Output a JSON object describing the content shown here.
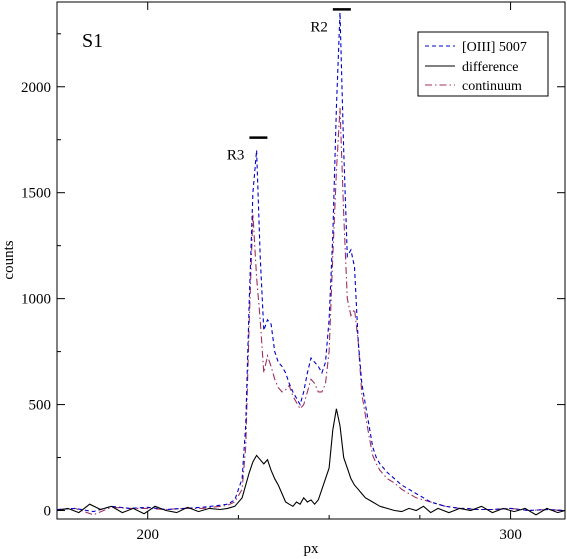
{
  "chart_data": {
    "type": "line",
    "panel_label": "S1",
    "xlabel": "px",
    "ylabel": "counts",
    "xlim": [
      175,
      315
    ],
    "ylim": [
      -40,
      2400
    ],
    "x_ticks": [
      200,
      300
    ],
    "y_ticks": [
      0,
      500,
      1000,
      1500,
      2000
    ],
    "legend_position": "top-right",
    "grid": false,
    "annotations": [
      {
        "text": "R3",
        "x": 230.5,
        "y": 1760
      },
      {
        "text": "R2",
        "x": 253.5,
        "y": 2365
      }
    ],
    "series": [
      {
        "name": "[OIII] 5007",
        "color": "#0000cc",
        "dash": "dashed",
        "x": [
          175,
          180,
          185,
          190,
          195,
          200,
          205,
          210,
          215,
          220,
          222,
          224,
          226,
          227,
          228,
          229,
          230,
          231,
          232,
          233,
          234,
          235,
          236,
          237,
          238,
          239,
          240,
          241,
          242,
          243,
          244,
          245,
          246,
          247,
          248,
          249,
          250,
          251,
          252,
          253,
          254,
          255,
          256,
          257,
          258,
          259,
          260,
          261,
          262,
          263,
          264,
          265,
          266,
          268,
          270,
          272,
          274,
          276,
          278,
          280,
          282,
          284,
          286,
          288,
          290,
          295,
          300,
          305,
          310,
          315
        ],
        "y": [
          5,
          10,
          -5,
          20,
          10,
          15,
          5,
          10,
          15,
          25,
          30,
          50,
          150,
          400,
          1000,
          1500,
          1700,
          1200,
          850,
          900,
          880,
          750,
          700,
          680,
          650,
          600,
          560,
          530,
          500,
          560,
          650,
          720,
          700,
          680,
          650,
          700,
          900,
          1300,
          1900,
          2350,
          1700,
          1200,
          1230,
          1150,
          800,
          600,
          500,
          400,
          300,
          250,
          220,
          200,
          180,
          150,
          120,
          100,
          80,
          60,
          40,
          30,
          20,
          15,
          10,
          10,
          5,
          5,
          10,
          0,
          5,
          0
        ]
      },
      {
        "name": "difference",
        "color": "#000000",
        "dash": "solid",
        "x": [
          175,
          178,
          181,
          184,
          187,
          190,
          193,
          196,
          199,
          202,
          205,
          208,
          211,
          214,
          217,
          220,
          222,
          224,
          226,
          227,
          228,
          229,
          230,
          231,
          232,
          233,
          234,
          235,
          236,
          237,
          238,
          239,
          240,
          241,
          242,
          243,
          244,
          245,
          246,
          247,
          248,
          249,
          250,
          251,
          252,
          253,
          254,
          255,
          256,
          257,
          258,
          259,
          260,
          262,
          264,
          266,
          268,
          270,
          272,
          274,
          276,
          278,
          280,
          283,
          286,
          289,
          292,
          295,
          298,
          301,
          304,
          307,
          310,
          313,
          315
        ],
        "y": [
          0,
          10,
          -10,
          30,
          5,
          20,
          -10,
          10,
          -15,
          20,
          0,
          -10,
          15,
          -5,
          10,
          5,
          10,
          20,
          60,
          120,
          180,
          230,
          260,
          240,
          220,
          240,
          190,
          150,
          120,
          80,
          40,
          30,
          20,
          40,
          30,
          60,
          40,
          50,
          30,
          50,
          100,
          150,
          200,
          380,
          480,
          400,
          250,
          200,
          150,
          120,
          100,
          80,
          60,
          40,
          20,
          10,
          0,
          -5,
          10,
          0,
          20,
          -10,
          10,
          -10,
          10,
          0,
          20,
          -10,
          10,
          -5,
          10,
          -20,
          10,
          -10,
          0
        ]
      },
      {
        "name": "continuum",
        "color": "#a03060",
        "dash": "dashdot",
        "x": [
          175,
          180,
          185,
          190,
          195,
          200,
          205,
          210,
          215,
          220,
          222,
          224,
          226,
          227,
          228,
          229,
          230,
          231,
          232,
          233,
          234,
          235,
          236,
          237,
          238,
          239,
          240,
          241,
          242,
          243,
          244,
          245,
          246,
          247,
          248,
          249,
          250,
          251,
          252,
          253,
          254,
          255,
          256,
          257,
          258,
          259,
          260,
          261,
          262,
          263,
          264,
          265,
          266,
          268,
          270,
          272,
          274,
          276,
          278,
          280,
          282,
          284,
          286,
          288,
          290,
          295,
          300,
          305,
          310,
          315
        ],
        "y": [
          5,
          10,
          -20,
          15,
          10,
          10,
          5,
          10,
          10,
          20,
          25,
          40,
          100,
          300,
          900,
          1400,
          1100,
          900,
          650,
          730,
          680,
          620,
          580,
          560,
          570,
          590,
          540,
          510,
          480,
          500,
          560,
          620,
          600,
          560,
          560,
          600,
          750,
          1200,
          1600,
          1900,
          1400,
          1000,
          920,
          950,
          800,
          550,
          450,
          350,
          260,
          220,
          190,
          170,
          150,
          130,
          100,
          80,
          60,
          50,
          40,
          30,
          20,
          15,
          10,
          10,
          5,
          5,
          10,
          0,
          5,
          0
        ]
      }
    ]
  }
}
